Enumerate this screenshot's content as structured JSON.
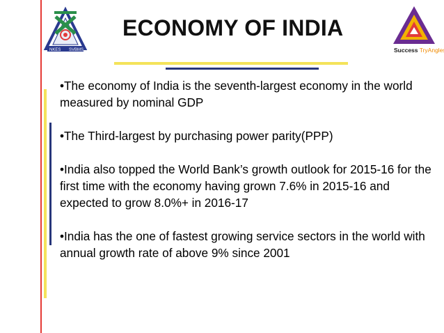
{
  "slide": {
    "title": "ECONOMY OF INDIA",
    "bullets": [
      "•The economy of India is the seventh-largest economy in the world measured by nominal GDP",
      "•The Third-largest by purchasing power parity(PPP)",
      "•India also topped the World Bank’s growth outlook for 2015-16 for the first time with the economy having grown 7.6% in 2015-16 and expected to grow 8.0%+ in 2016-17",
      "•India has the one of fastest growing service sectors in the world with annual growth rate of above 9% since 2001"
    ]
  },
  "logo_left": {
    "icon": "school-emblem-icon",
    "left_text": "NKES",
    "right_text": "SVBMS"
  },
  "logo_right": {
    "icon": "success-tryangles-logo-icon",
    "brand_strong": "Success",
    "brand_soft": "TryAngles"
  },
  "colors": {
    "accent_red": "#e53935",
    "accent_yellow": "#f4e35a",
    "accent_navy": "#27367a",
    "brand_orange": "#f08a00",
    "brand_purple": "#6a2c91",
    "text": "#000000"
  }
}
